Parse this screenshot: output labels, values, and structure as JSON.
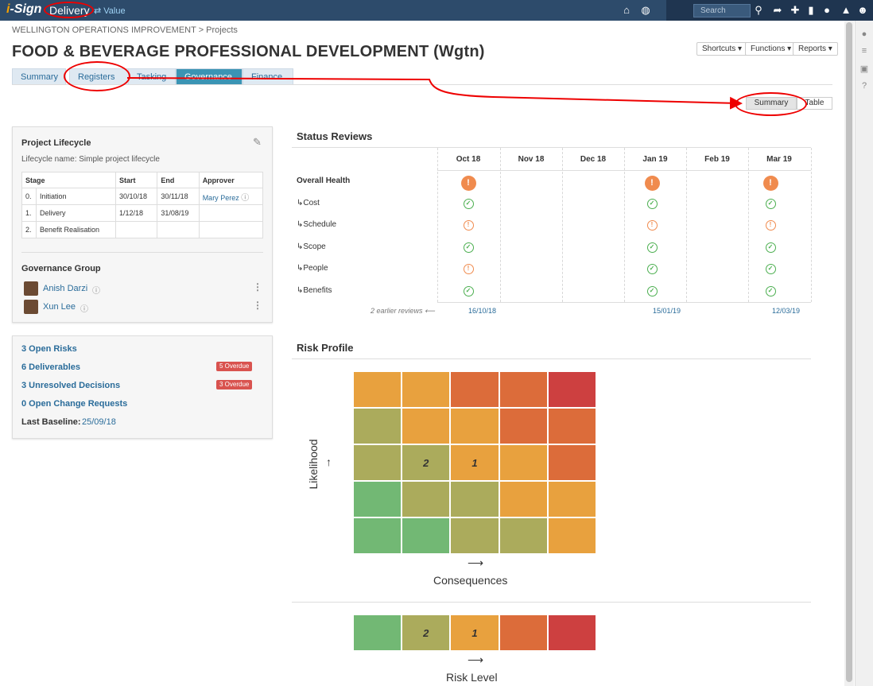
{
  "app": {
    "logo_i": "i",
    "logo_rest": "-Sign",
    "mode": "Delivery",
    "switch_label": "⇄ Value",
    "search_placeholder": "Search"
  },
  "breadcrumb": "WELLINGTON OPERATIONS IMPROVEMENT > Projects",
  "title": "FOOD & BEVERAGE PROFESSIONAL DEVELOPMENT (Wgtn)",
  "dropdowns": {
    "shortcuts": "Shortcuts ▾",
    "functions": "Functions ▾",
    "reports": "Reports ▾"
  },
  "tabs": [
    "Summary",
    "Registers",
    "Tasking",
    "Governance",
    "Finance"
  ],
  "view_toggle": {
    "summary": "Summary",
    "table": "Table"
  },
  "lifecycle": {
    "heading": "Project Lifecycle",
    "name_line": "Lifecycle name: Simple project lifecycle",
    "cols": [
      "Stage",
      "Start",
      "End",
      "Approver"
    ],
    "rows": [
      [
        "0.",
        "Initiation",
        "30/10/18",
        "30/11/18",
        "Mary Perez"
      ],
      [
        "1.",
        "Delivery",
        "1/12/18",
        "31/08/19",
        ""
      ],
      [
        "2.",
        "Benefit Realisation",
        "",
        "",
        ""
      ]
    ]
  },
  "governance": {
    "heading": "Governance Group",
    "members": [
      "Anish Darzi",
      "Xun Lee"
    ]
  },
  "metrics": {
    "risks": "3 Open Risks",
    "deliverables": "6 Deliverables",
    "deliverables_badge": "5 Overdue",
    "decisions": "3 Unresolved Decisions",
    "decisions_badge": "3 Overdue",
    "changes": "0 Open Change Requests",
    "baseline_label": "Last Baseline:",
    "baseline_date": "25/09/18"
  },
  "status": {
    "heading": "Status Reviews",
    "months": [
      "Oct 18",
      "Nov 18",
      "Dec 18",
      "Jan 19",
      "Feb 19",
      "Mar 19"
    ],
    "rows": [
      "Overall Health",
      "↳Cost",
      "↳Schedule",
      "↳Scope",
      "↳People",
      "↳Benefits"
    ],
    "earlier": "2 earlier reviews ⟵",
    "dates": [
      "16/10/18",
      "15/01/19",
      "12/03/19"
    ]
  },
  "risk": {
    "heading": "Risk Profile",
    "ylabel": "Likelihood",
    "xlabel": "Consequences",
    "level_label": "Risk Level",
    "up_arrow": "↑",
    "right_arrow": "⟶",
    "colors": {
      "green": "#72b874",
      "olive": "#abab5c",
      "orange": "#e8a13e",
      "darkorange": "#dc6c3a",
      "red": "#cd4040"
    },
    "grid": [
      [
        "orange",
        "orange",
        "darkorange",
        "darkorange",
        "red"
      ],
      [
        "olive",
        "orange",
        "orange",
        "darkorange",
        "darkorange"
      ],
      [
        "olive",
        "olive",
        "orange",
        "orange",
        "darkorange"
      ],
      [
        "green",
        "olive",
        "olive",
        "orange",
        "orange"
      ],
      [
        "green",
        "green",
        "olive",
        "olive",
        "orange"
      ]
    ],
    "counts": [
      {
        "row": 2,
        "col": 1,
        "n": "2"
      },
      {
        "row": 2,
        "col": 2,
        "n": "1"
      }
    ],
    "level_colors": [
      "green",
      "olive",
      "orange",
      "darkorange",
      "red"
    ],
    "level_counts": [
      "",
      "2",
      "1",
      "",
      ""
    ]
  }
}
